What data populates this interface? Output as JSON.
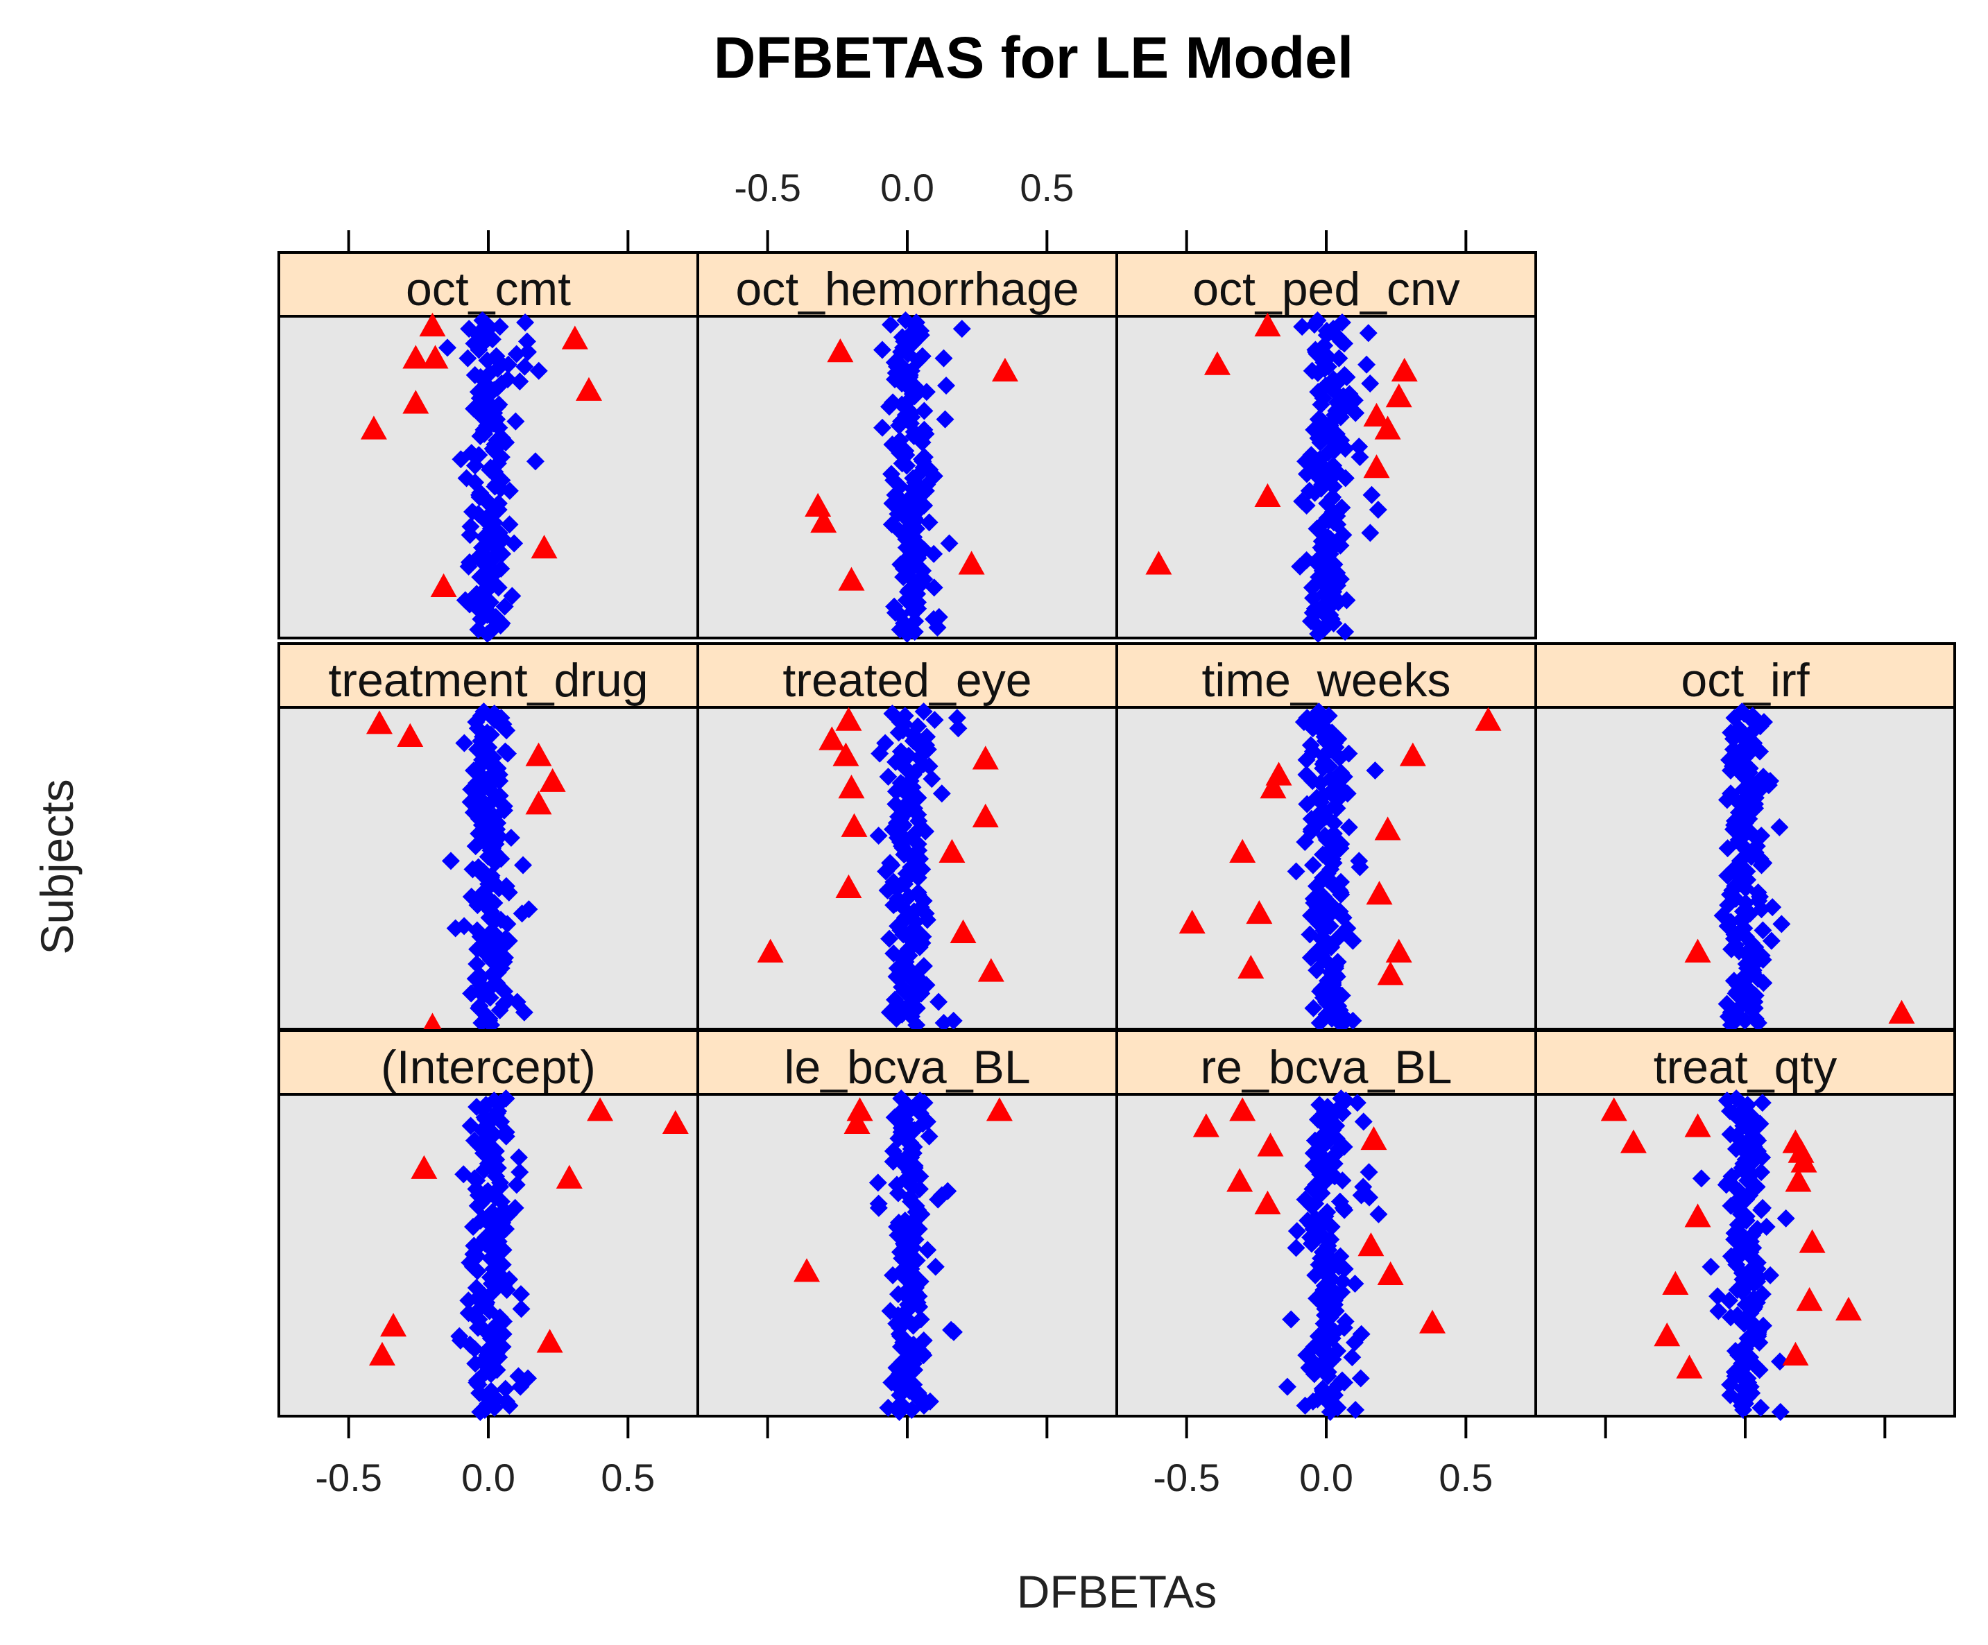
{
  "chart_data": {
    "type": "scatter",
    "title": "DFBETAS for LE Model",
    "xlabel": "DFBETAs",
    "ylabel": "Subjects",
    "xlim": [
      -0.75,
      0.75
    ],
    "x_ticks": [
      -0.5,
      0.0,
      0.5
    ],
    "x_tick_labels": [
      "-0.5",
      "0.0",
      "0.5"
    ],
    "grid": false,
    "colors": {
      "within_cutoff": "#0000ff",
      "beyond_cutoff": "#ff0000",
      "strip_background": "#ffe4c4",
      "panel_background": "#e6e6e6"
    },
    "markers": {
      "within_cutoff": "diamond",
      "beyond_cutoff": "triangle"
    },
    "panels": [
      {
        "name": "oct_cmt",
        "outliers": [
          {
            "x": -0.2,
            "subject": 0.03
          },
          {
            "x": -0.26,
            "subject": 0.13
          },
          {
            "x": -0.19,
            "subject": 0.13
          },
          {
            "x": 0.31,
            "subject": 0.07
          },
          {
            "x": 0.36,
            "subject": 0.23
          },
          {
            "x": -0.26,
            "subject": 0.27
          },
          {
            "x": -0.41,
            "subject": 0.35
          },
          {
            "x": 0.2,
            "subject": 0.72
          },
          {
            "x": -0.16,
            "subject": 0.84
          }
        ]
      },
      {
        "name": "oct_hemorrhage",
        "outliers": [
          {
            "x": -0.24,
            "subject": 0.11
          },
          {
            "x": 0.35,
            "subject": 0.17
          },
          {
            "x": -0.32,
            "subject": 0.59
          },
          {
            "x": -0.3,
            "subject": 0.64
          },
          {
            "x": 0.23,
            "subject": 0.77
          },
          {
            "x": -0.2,
            "subject": 0.82
          }
        ]
      },
      {
        "name": "oct_ped_cnv",
        "outliers": [
          {
            "x": -0.21,
            "subject": 0.03
          },
          {
            "x": -0.39,
            "subject": 0.15
          },
          {
            "x": 0.28,
            "subject": 0.17
          },
          {
            "x": 0.26,
            "subject": 0.25
          },
          {
            "x": 0.18,
            "subject": 0.31
          },
          {
            "x": 0.22,
            "subject": 0.35
          },
          {
            "x": 0.18,
            "subject": 0.47
          },
          {
            "x": -0.21,
            "subject": 0.56
          },
          {
            "x": -0.6,
            "subject": 0.77
          }
        ]
      },
      {
        "name": "treatment_drug",
        "outliers": [
          {
            "x": -0.39,
            "subject": 0.05
          },
          {
            "x": -0.28,
            "subject": 0.09
          },
          {
            "x": 0.18,
            "subject": 0.15
          },
          {
            "x": 0.23,
            "subject": 0.23
          },
          {
            "x": 0.18,
            "subject": 0.3
          },
          {
            "x": -0.2,
            "subject": 0.99
          }
        ]
      },
      {
        "name": "treated_eye",
        "outliers": [
          {
            "x": -0.21,
            "subject": 0.04
          },
          {
            "x": -0.27,
            "subject": 0.1
          },
          {
            "x": -0.22,
            "subject": 0.15
          },
          {
            "x": 0.28,
            "subject": 0.16
          },
          {
            "x": -0.2,
            "subject": 0.25
          },
          {
            "x": 0.28,
            "subject": 0.34
          },
          {
            "x": -0.19,
            "subject": 0.37
          },
          {
            "x": 0.16,
            "subject": 0.45
          },
          {
            "x": -0.21,
            "subject": 0.56
          },
          {
            "x": 0.2,
            "subject": 0.7
          },
          {
            "x": -0.49,
            "subject": 0.76
          },
          {
            "x": 0.3,
            "subject": 0.82
          }
        ]
      },
      {
        "name": "time_weeks",
        "outliers": [
          {
            "x": 0.58,
            "subject": 0.04
          },
          {
            "x": 0.31,
            "subject": 0.15
          },
          {
            "x": -0.17,
            "subject": 0.21
          },
          {
            "x": -0.19,
            "subject": 0.25
          },
          {
            "x": 0.22,
            "subject": 0.38
          },
          {
            "x": -0.3,
            "subject": 0.45
          },
          {
            "x": 0.19,
            "subject": 0.58
          },
          {
            "x": -0.24,
            "subject": 0.64
          },
          {
            "x": -0.48,
            "subject": 0.67
          },
          {
            "x": 0.26,
            "subject": 0.76
          },
          {
            "x": -0.27,
            "subject": 0.81
          },
          {
            "x": 0.23,
            "subject": 0.83
          }
        ]
      },
      {
        "name": "oct_irf",
        "outliers": [
          {
            "x": -0.17,
            "subject": 0.76
          },
          {
            "x": 0.56,
            "subject": 0.95
          }
        ]
      },
      {
        "name": "(Intercept)",
        "outliers": [
          {
            "x": 0.4,
            "subject": 0.05
          },
          {
            "x": 0.67,
            "subject": 0.09
          },
          {
            "x": -0.23,
            "subject": 0.23
          },
          {
            "x": 0.29,
            "subject": 0.26
          },
          {
            "x": -0.34,
            "subject": 0.72
          },
          {
            "x": 0.22,
            "subject": 0.77
          },
          {
            "x": -0.38,
            "subject": 0.81
          }
        ]
      },
      {
        "name": "le_bcva_BL",
        "outliers": [
          {
            "x": -0.17,
            "subject": 0.05
          },
          {
            "x": -0.18,
            "subject": 0.09
          },
          {
            "x": 0.33,
            "subject": 0.05
          },
          {
            "x": -0.36,
            "subject": 0.55
          }
        ]
      },
      {
        "name": "re_bcva_BL",
        "outliers": [
          {
            "x": -0.3,
            "subject": 0.05
          },
          {
            "x": -0.43,
            "subject": 0.1
          },
          {
            "x": -0.2,
            "subject": 0.16
          },
          {
            "x": 0.17,
            "subject": 0.14
          },
          {
            "x": -0.31,
            "subject": 0.27
          },
          {
            "x": -0.21,
            "subject": 0.34
          },
          {
            "x": 0.16,
            "subject": 0.47
          },
          {
            "x": 0.23,
            "subject": 0.56
          },
          {
            "x": 0.38,
            "subject": 0.71
          }
        ]
      },
      {
        "name": "treat_qty",
        "outliers": [
          {
            "x": -0.47,
            "subject": 0.05
          },
          {
            "x": -0.17,
            "subject": 0.1
          },
          {
            "x": -0.4,
            "subject": 0.15
          },
          {
            "x": 0.18,
            "subject": 0.15
          },
          {
            "x": 0.2,
            "subject": 0.18
          },
          {
            "x": 0.21,
            "subject": 0.21
          },
          {
            "x": 0.19,
            "subject": 0.27
          },
          {
            "x": -0.17,
            "subject": 0.38
          },
          {
            "x": 0.24,
            "subject": 0.46
          },
          {
            "x": -0.25,
            "subject": 0.59
          },
          {
            "x": 0.23,
            "subject": 0.64
          },
          {
            "x": 0.37,
            "subject": 0.67
          },
          {
            "x": -0.28,
            "subject": 0.75
          },
          {
            "x": 0.18,
            "subject": 0.81
          },
          {
            "x": -0.2,
            "subject": 0.85
          }
        ]
      }
    ]
  }
}
